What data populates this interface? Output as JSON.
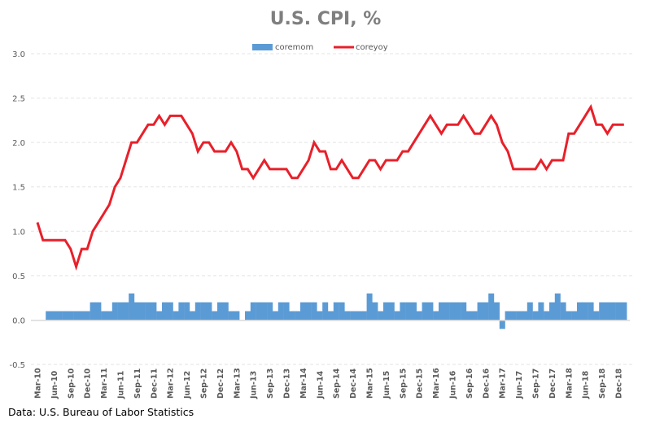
{
  "chart_data": {
    "type": "bar+line",
    "title": "U.S. CPI, %",
    "xlabel": "",
    "ylabel": "",
    "ylim": [
      -0.5,
      3.0
    ],
    "yticks": [
      "3.0",
      "2.5",
      "2.0",
      "1.5",
      "1.0",
      "0.5",
      "0.0",
      "-0.5"
    ],
    "ytick_values": [
      3.0,
      2.5,
      2.0,
      1.5,
      1.0,
      0.5,
      0.0,
      -0.5
    ],
    "grid": true,
    "legend_position": "top",
    "categories": [
      "Mar-10",
      "Apr-10",
      "May-10",
      "Jun-10",
      "Jul-10",
      "Aug-10",
      "Sep-10",
      "Oct-10",
      "Nov-10",
      "Dec-10",
      "Jan-11",
      "Feb-11",
      "Mar-11",
      "Apr-11",
      "May-11",
      "Jun-11",
      "Jul-11",
      "Aug-11",
      "Sep-11",
      "Oct-11",
      "Nov-11",
      "Dec-11",
      "Jan-12",
      "Feb-12",
      "Mar-12",
      "Apr-12",
      "May-12",
      "Jun-12",
      "Jul-12",
      "Aug-12",
      "Sep-12",
      "Oct-12",
      "Nov-12",
      "Dec-12",
      "Jan-13",
      "Feb-13",
      "Mar-13",
      "Apr-13",
      "May-13",
      "Jun-13",
      "Jul-13",
      "Aug-13",
      "Sep-13",
      "Oct-13",
      "Nov-13",
      "Dec-13",
      "Jan-14",
      "Feb-14",
      "Mar-14",
      "Apr-14",
      "May-14",
      "Jun-14",
      "Jul-14",
      "Aug-14",
      "Sep-14",
      "Oct-14",
      "Nov-14",
      "Dec-14",
      "Jan-15",
      "Feb-15",
      "Mar-15",
      "Apr-15",
      "May-15",
      "Jun-15",
      "Jul-15",
      "Aug-15",
      "Sep-15",
      "Oct-15",
      "Nov-15",
      "Dec-15",
      "Jan-16",
      "Feb-16",
      "Mar-16",
      "Apr-16",
      "May-16",
      "Jun-16",
      "Jul-16",
      "Aug-16",
      "Sep-16",
      "Oct-16",
      "Nov-16",
      "Dec-16",
      "Jan-17",
      "Feb-17",
      "Mar-17",
      "Apr-17",
      "May-17",
      "Jun-17",
      "Jul-17",
      "Aug-17",
      "Sep-17",
      "Oct-17",
      "Nov-17",
      "Dec-17",
      "Jan-18",
      "Feb-18",
      "Mar-18",
      "Apr-18",
      "May-18",
      "Jun-18",
      "Jul-18",
      "Aug-18",
      "Sep-18",
      "Oct-18",
      "Nov-18",
      "Dec-18",
      "Jan-19"
    ],
    "xtick_every": 3,
    "series": [
      {
        "name": "coremom",
        "type": "bar",
        "color": "#5b9bd5",
        "values": [
          0.0,
          0.0,
          0.1,
          0.1,
          0.1,
          0.1,
          0.1,
          0.1,
          0.1,
          0.1,
          0.2,
          0.2,
          0.1,
          0.1,
          0.2,
          0.2,
          0.2,
          0.3,
          0.2,
          0.2,
          0.2,
          0.2,
          0.1,
          0.2,
          0.2,
          0.1,
          0.2,
          0.2,
          0.1,
          0.2,
          0.2,
          0.2,
          0.1,
          0.2,
          0.2,
          0.1,
          0.1,
          0.0,
          0.1,
          0.2,
          0.2,
          0.2,
          0.2,
          0.1,
          0.2,
          0.2,
          0.1,
          0.1,
          0.2,
          0.2,
          0.2,
          0.1,
          0.2,
          0.1,
          0.2,
          0.2,
          0.1,
          0.1,
          0.1,
          0.1,
          0.3,
          0.2,
          0.1,
          0.2,
          0.2,
          0.1,
          0.2,
          0.2,
          0.2,
          0.1,
          0.2,
          0.2,
          0.1,
          0.2,
          0.2,
          0.2,
          0.2,
          0.2,
          0.1,
          0.1,
          0.2,
          0.2,
          0.3,
          0.2,
          -0.1,
          0.1,
          0.1,
          0.1,
          0.1,
          0.2,
          0.1,
          0.2,
          0.1,
          0.2,
          0.3,
          0.2,
          0.1,
          0.1,
          0.2,
          0.2,
          0.2,
          0.1,
          0.2,
          0.2,
          0.2,
          0.2,
          0.2
        ]
      },
      {
        "name": "coreyoy",
        "type": "line",
        "color": "#e8202a",
        "values": [
          1.1,
          0.9,
          0.9,
          0.9,
          0.9,
          0.9,
          0.8,
          0.6,
          0.8,
          0.8,
          1.0,
          1.1,
          1.2,
          1.3,
          1.5,
          1.6,
          1.8,
          2.0,
          2.0,
          2.1,
          2.2,
          2.2,
          2.3,
          2.2,
          2.3,
          2.3,
          2.3,
          2.2,
          2.1,
          1.9,
          2.0,
          2.0,
          1.9,
          1.9,
          1.9,
          2.0,
          1.9,
          1.7,
          1.7,
          1.6,
          1.7,
          1.8,
          1.7,
          1.7,
          1.7,
          1.7,
          1.6,
          1.6,
          1.7,
          1.8,
          2.0,
          1.9,
          1.9,
          1.7,
          1.7,
          1.8,
          1.7,
          1.6,
          1.6,
          1.7,
          1.8,
          1.8,
          1.7,
          1.8,
          1.8,
          1.8,
          1.9,
          1.9,
          2.0,
          2.1,
          2.2,
          2.3,
          2.2,
          2.1,
          2.2,
          2.2,
          2.2,
          2.3,
          2.2,
          2.1,
          2.1,
          2.2,
          2.3,
          2.2,
          2.0,
          1.9,
          1.7,
          1.7,
          1.7,
          1.7,
          1.7,
          1.8,
          1.7,
          1.8,
          1.8,
          1.8,
          2.1,
          2.1,
          2.2,
          2.3,
          2.4,
          2.2,
          2.2,
          2.1,
          2.2,
          2.2,
          2.2
        ]
      }
    ]
  },
  "source_note": "Data: U.S. Bureau of Labor Statistics"
}
